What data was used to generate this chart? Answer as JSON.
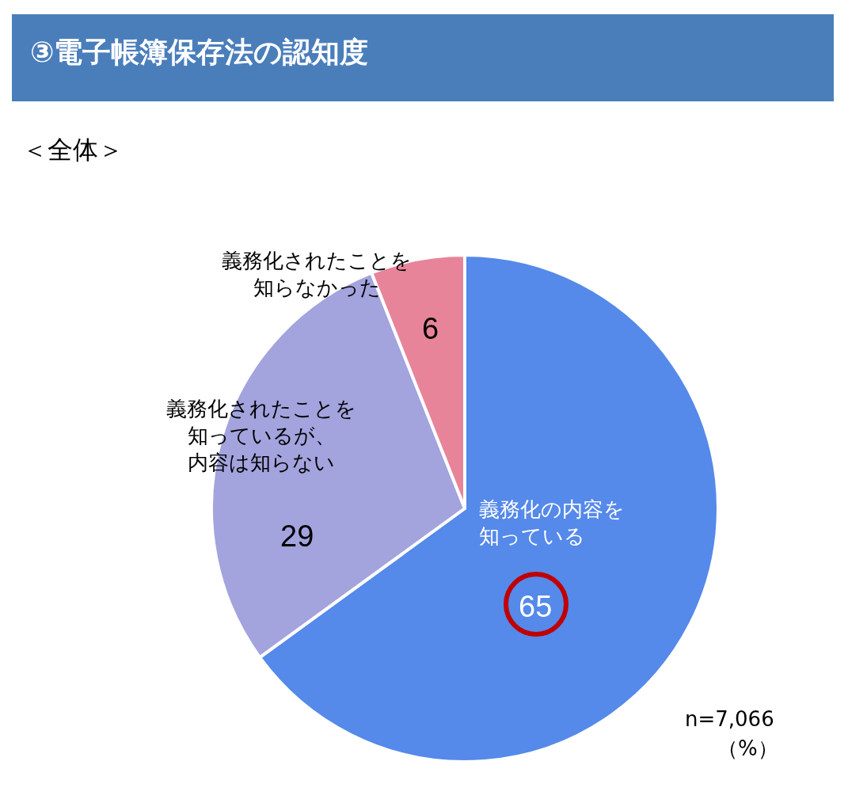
{
  "chart_data": {
    "type": "pie",
    "title": "③電子帳簿保存法の認知度",
    "subtitle": "＜全体＞",
    "categories": [
      "義務化の内容を知っている",
      "義務化されたことを知っているが、内容は知らない",
      "義務化されたことを知らなかった"
    ],
    "values": [
      65,
      29,
      6
    ],
    "colors": [
      "#5589ea",
      "#a3a3de",
      "#e8849a"
    ],
    "data_labels": true,
    "annotations": [
      "n=7,066",
      "（%）"
    ]
  }
}
